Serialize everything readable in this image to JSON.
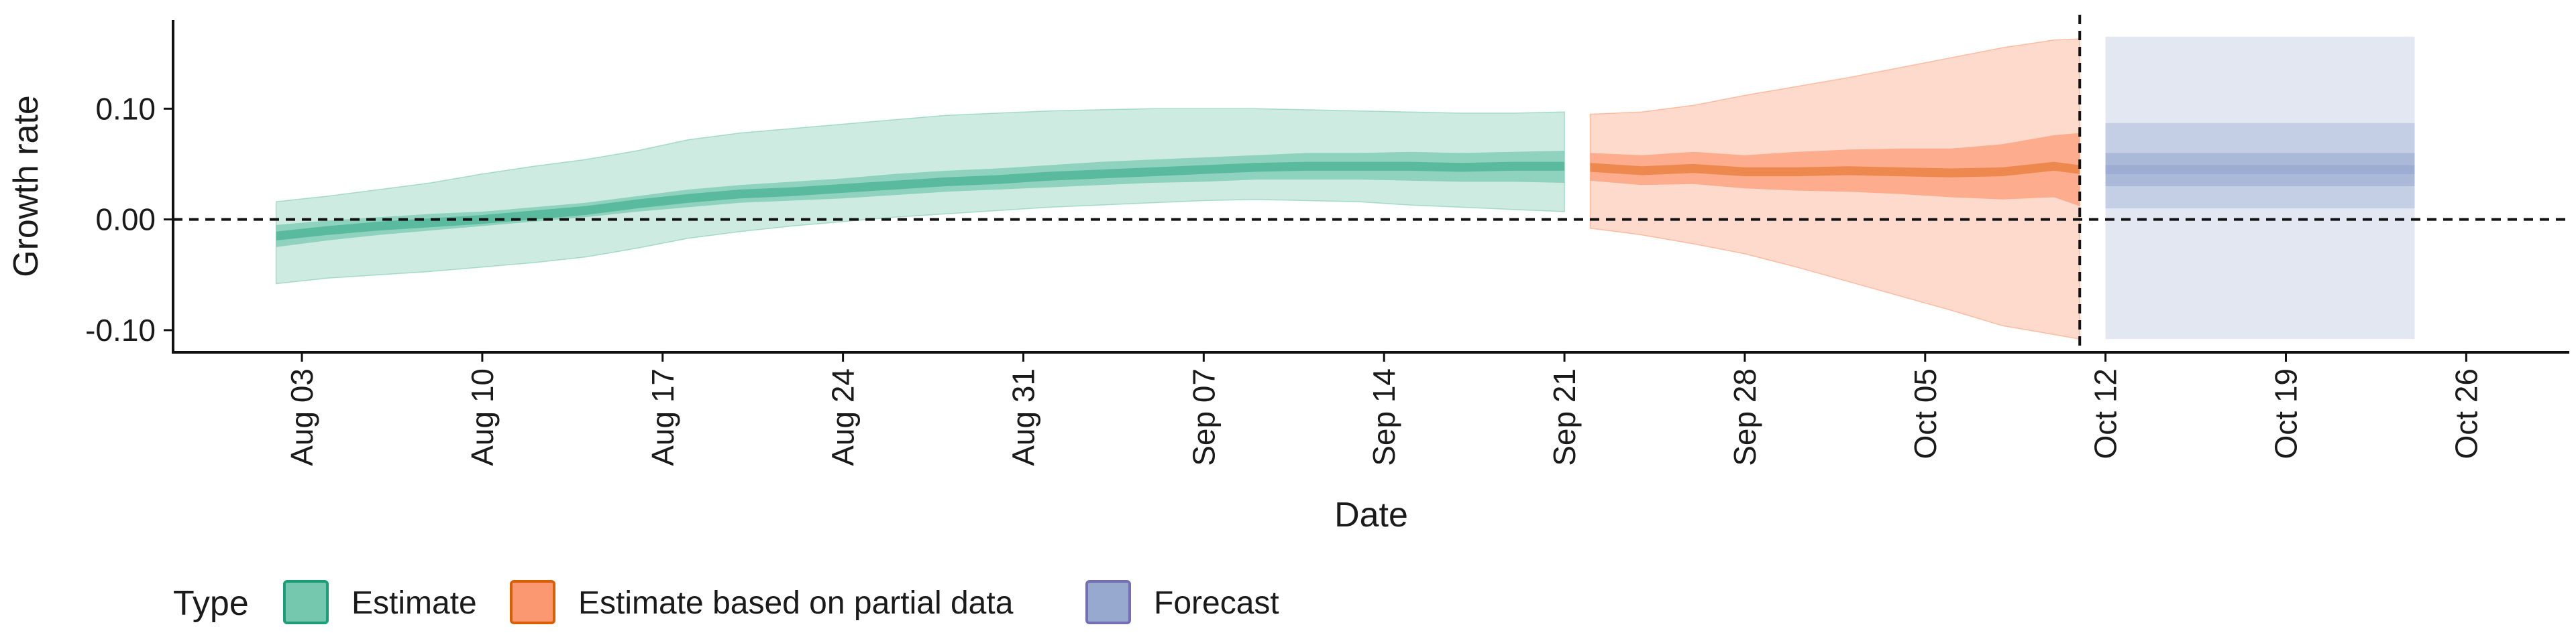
{
  "chart_data": {
    "type": "area",
    "title": "",
    "xlabel": "Date",
    "ylabel": "Growth rate",
    "xlim": [
      "2020-07-29",
      "2020-10-30"
    ],
    "ylim": [
      -0.12,
      0.18
    ],
    "x_ticks": [
      "2020-08-03",
      "2020-08-10",
      "2020-08-17",
      "2020-08-24",
      "2020-08-31",
      "2020-09-07",
      "2020-09-14",
      "2020-09-21",
      "2020-09-28",
      "2020-10-05",
      "2020-10-12",
      "2020-10-19",
      "2020-10-26"
    ],
    "x_tick_labels": [
      "Aug 03",
      "Aug 10",
      "Aug 17",
      "Aug 24",
      "Aug 31",
      "Sep 07",
      "Sep 14",
      "Sep 21",
      "Sep 28",
      "Oct 05",
      "Oct 12",
      "Oct 19",
      "Oct 26"
    ],
    "y_ticks": [
      -0.1,
      0.0,
      0.1
    ],
    "y_tick_labels": [
      "-0.10",
      "0.00",
      "0.10"
    ],
    "reference_lines": {
      "horizontal_y": 0.0,
      "vertical_x": "2020-10-11"
    },
    "grid": false,
    "legend": {
      "title": "Type",
      "position": "bottom-left"
    },
    "series": [
      {
        "name": "Estimate",
        "color": "#1b9e77",
        "fill": "#66c2a5",
        "x": [
          "2020-08-02",
          "2020-08-04",
          "2020-08-06",
          "2020-08-08",
          "2020-08-10",
          "2020-08-12",
          "2020-08-14",
          "2020-08-16",
          "2020-08-18",
          "2020-08-20",
          "2020-08-22",
          "2020-08-24",
          "2020-08-26",
          "2020-08-28",
          "2020-08-30",
          "2020-09-01",
          "2020-09-03",
          "2020-09-05",
          "2020-09-07",
          "2020-09-09",
          "2020-09-11",
          "2020-09-13",
          "2020-09-15",
          "2020-09-17",
          "2020-09-19",
          "2020-09-21"
        ],
        "median": [
          -0.015,
          -0.01,
          -0.006,
          -0.003,
          0.0,
          0.004,
          0.008,
          0.014,
          0.019,
          0.023,
          0.025,
          0.028,
          0.031,
          0.034,
          0.036,
          0.039,
          0.041,
          0.043,
          0.045,
          0.047,
          0.048,
          0.048,
          0.048,
          0.047,
          0.048,
          0.048
        ],
        "inner_lower": [
          -0.025,
          -0.019,
          -0.014,
          -0.01,
          -0.006,
          -0.002,
          0.002,
          0.007,
          0.011,
          0.015,
          0.017,
          0.019,
          0.022,
          0.025,
          0.027,
          0.029,
          0.031,
          0.033,
          0.034,
          0.036,
          0.036,
          0.036,
          0.035,
          0.034,
          0.034,
          0.033
        ],
        "inner_upper": [
          -0.005,
          -0.001,
          0.002,
          0.005,
          0.007,
          0.011,
          0.015,
          0.021,
          0.027,
          0.031,
          0.034,
          0.037,
          0.041,
          0.044,
          0.046,
          0.049,
          0.052,
          0.054,
          0.056,
          0.058,
          0.06,
          0.06,
          0.061,
          0.06,
          0.061,
          0.062
        ],
        "outer_lower": [
          -0.058,
          -0.053,
          -0.05,
          -0.047,
          -0.043,
          -0.039,
          -0.034,
          -0.026,
          -0.017,
          -0.011,
          -0.006,
          -0.002,
          0.002,
          0.005,
          0.008,
          0.011,
          0.013,
          0.015,
          0.017,
          0.018,
          0.017,
          0.016,
          0.013,
          0.011,
          0.009,
          0.007
        ],
        "outer_upper": [
          0.016,
          0.021,
          0.027,
          0.033,
          0.041,
          0.048,
          0.054,
          0.062,
          0.072,
          0.078,
          0.082,
          0.086,
          0.09,
          0.094,
          0.096,
          0.098,
          0.099,
          0.1,
          0.1,
          0.1,
          0.099,
          0.098,
          0.097,
          0.096,
          0.096,
          0.097
        ]
      },
      {
        "name": "Estimate based on partial data",
        "color": "#d95f02",
        "fill": "#fc8d62",
        "x": [
          "2020-09-22",
          "2020-09-24",
          "2020-09-26",
          "2020-09-28",
          "2020-09-30",
          "2020-10-02",
          "2020-10-04",
          "2020-10-06",
          "2020-10-08",
          "2020-10-10",
          "2020-10-11"
        ],
        "median": [
          0.047,
          0.044,
          0.046,
          0.043,
          0.043,
          0.044,
          0.043,
          0.042,
          0.043,
          0.048,
          0.045
        ],
        "inner_lower": [
          0.035,
          0.031,
          0.032,
          0.028,
          0.026,
          0.025,
          0.023,
          0.02,
          0.018,
          0.02,
          0.012
        ],
        "inner_upper": [
          0.06,
          0.058,
          0.061,
          0.058,
          0.061,
          0.063,
          0.064,
          0.064,
          0.068,
          0.076,
          0.078
        ],
        "outer_lower": [
          -0.008,
          -0.014,
          -0.022,
          -0.031,
          -0.043,
          -0.056,
          -0.069,
          -0.082,
          -0.096,
          -0.104,
          -0.108
        ],
        "outer_upper": [
          0.095,
          0.097,
          0.103,
          0.112,
          0.12,
          0.128,
          0.137,
          0.146,
          0.155,
          0.162,
          0.163
        ]
      },
      {
        "name": "Forecast",
        "color": "#7570b3",
        "fill": "#8da0cb",
        "x": [
          "2020-10-12",
          "2020-10-24"
        ],
        "median": [
          0.045,
          0.045
        ],
        "inner_lower": [
          0.03,
          0.03
        ],
        "inner_upper": [
          0.06,
          0.06
        ],
        "mid_lower": [
          0.01,
          0.01
        ],
        "mid_upper": [
          0.087,
          0.087
        ],
        "outer_lower": [
          -0.108,
          -0.108
        ],
        "outer_upper": [
          0.165,
          0.165
        ]
      }
    ]
  }
}
